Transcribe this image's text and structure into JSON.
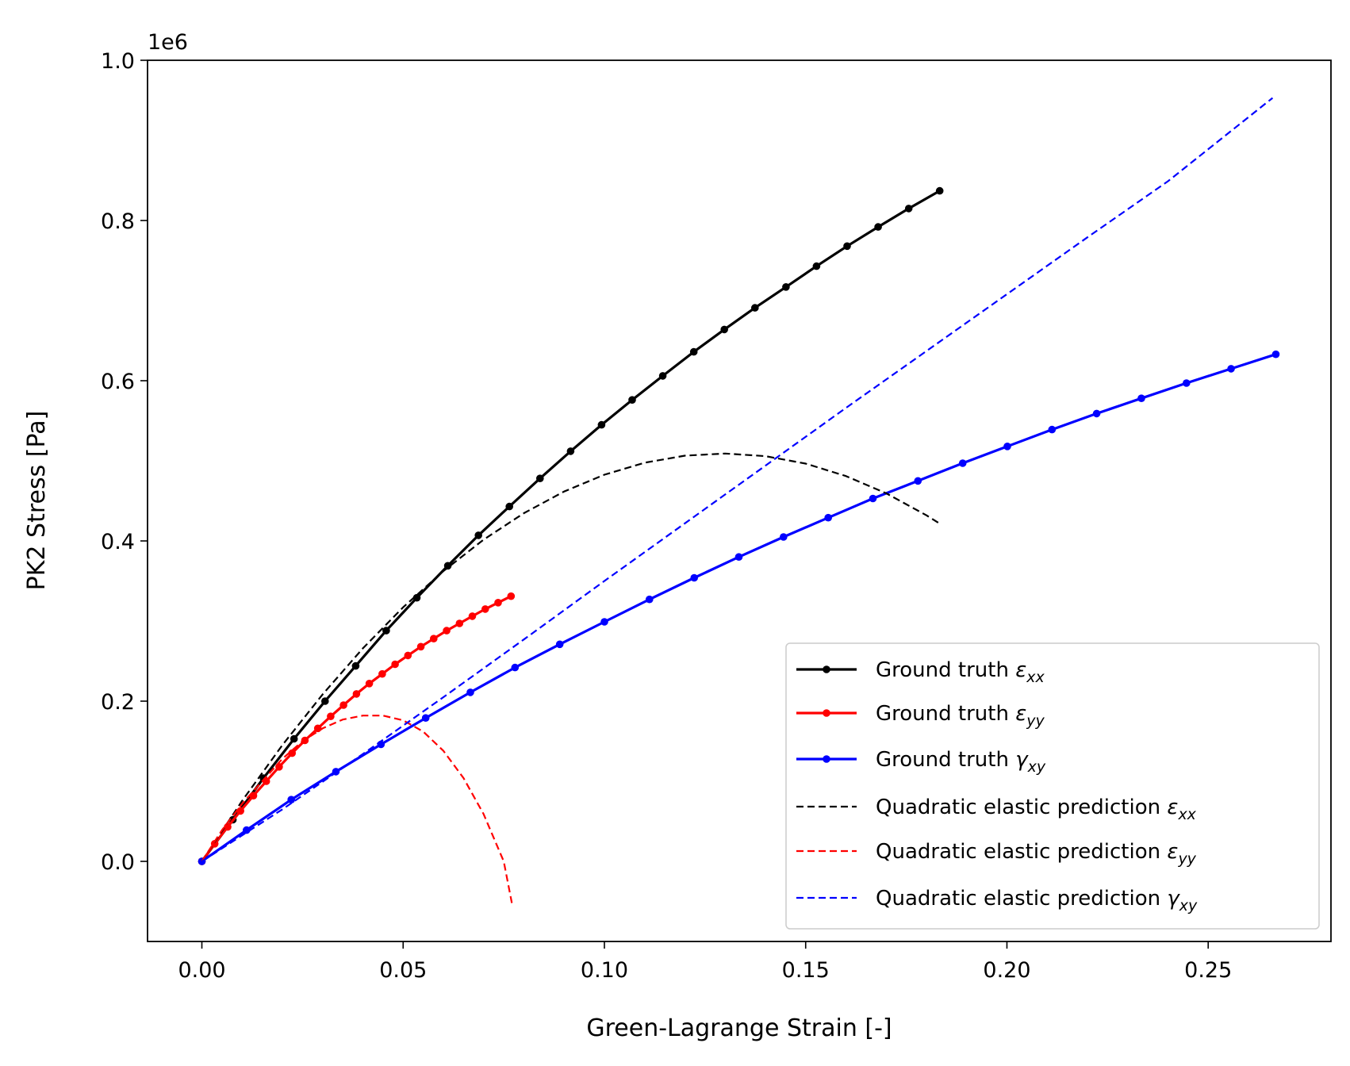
{
  "chart_data": {
    "type": "line",
    "title": "",
    "xlabel": "Green-Lagrange Strain [-]",
    "ylabel": "PK2 Stress [Pa]",
    "y_offset_label": "1e6",
    "xlim": [
      -0.0135,
      0.2805
    ],
    "ylim": [
      -0.1,
      1.0
    ],
    "y_scale_factor": 1000000,
    "x_ticks": [
      0.0,
      0.05,
      0.1,
      0.15,
      0.2,
      0.25
    ],
    "x_tick_labels": [
      "0.00",
      "0.05",
      "0.10",
      "0.15",
      "0.20",
      "0.25"
    ],
    "y_ticks": [
      0.0,
      0.2,
      0.4,
      0.6,
      0.8,
      1.0
    ],
    "y_tick_labels": [
      "0.0",
      "0.2",
      "0.4",
      "0.6",
      "0.8",
      "1.0"
    ],
    "grid": false,
    "legend_position": "lower-right",
    "series": [
      {
        "name": "Ground truth ",
        "symbol": "ε",
        "sub": "xx",
        "color": "#000000",
        "style": "solid-marker",
        "x": [
          0.0,
          0.0077,
          0.0153,
          0.0229,
          0.0306,
          0.0382,
          0.0458,
          0.0534,
          0.0611,
          0.0687,
          0.0764,
          0.084,
          0.0916,
          0.0993,
          0.1069,
          0.1145,
          0.1222,
          0.1298,
          0.1374,
          0.1451,
          0.1527,
          0.1603,
          0.168,
          0.1756,
          0.1833
        ],
        "y": [
          0.0,
          0.052,
          0.104,
          0.153,
          0.2,
          0.244,
          0.288,
          0.329,
          0.369,
          0.407,
          0.443,
          0.478,
          0.512,
          0.545,
          0.576,
          0.606,
          0.636,
          0.664,
          0.691,
          0.717,
          0.743,
          0.768,
          0.792,
          0.815,
          0.837
        ]
      },
      {
        "name": "Ground truth ",
        "symbol": "ε",
        "sub": "yy",
        "color": "#ff0000",
        "style": "solid-marker",
        "x": [
          0.0,
          0.0032,
          0.0064,
          0.0096,
          0.0128,
          0.016,
          0.0192,
          0.0224,
          0.0256,
          0.0288,
          0.032,
          0.0352,
          0.0384,
          0.0416,
          0.0448,
          0.048,
          0.0512,
          0.0544,
          0.0576,
          0.0608,
          0.064,
          0.0672,
          0.0704,
          0.0736,
          0.0768
        ],
        "y": [
          0.0,
          0.022,
          0.043,
          0.063,
          0.082,
          0.1,
          0.118,
          0.135,
          0.151,
          0.166,
          0.181,
          0.195,
          0.209,
          0.222,
          0.234,
          0.246,
          0.257,
          0.268,
          0.278,
          0.288,
          0.297,
          0.306,
          0.315,
          0.323,
          0.331
        ]
      },
      {
        "name": "Ground truth ",
        "symbol": "γ",
        "sub": "xy",
        "color": "#0000ff",
        "style": "solid-marker",
        "x": [
          0.0,
          0.0111,
          0.0222,
          0.0333,
          0.0445,
          0.0556,
          0.0667,
          0.0778,
          0.0889,
          0.1,
          0.1112,
          0.1223,
          0.1334,
          0.1445,
          0.1556,
          0.1667,
          0.1779,
          0.189,
          0.2001,
          0.2112,
          0.2223,
          0.2334,
          0.2446,
          0.2557,
          0.2668
        ],
        "y": [
          0.0,
          0.039,
          0.077,
          0.112,
          0.146,
          0.179,
          0.211,
          0.242,
          0.271,
          0.299,
          0.327,
          0.354,
          0.38,
          0.405,
          0.429,
          0.453,
          0.475,
          0.497,
          0.518,
          0.539,
          0.559,
          0.578,
          0.597,
          0.615,
          0.633
        ]
      },
      {
        "name": "Quadratic elastic prediction ",
        "symbol": "ε",
        "sub": "xx",
        "color": "#000000",
        "style": "dashed",
        "x": [
          0.0,
          0.01,
          0.02,
          0.03,
          0.04,
          0.05,
          0.06,
          0.07,
          0.08,
          0.09,
          0.1,
          0.11,
          0.12,
          0.13,
          0.14,
          0.15,
          0.16,
          0.17,
          0.18,
          0.183
        ],
        "y": [
          0.0,
          0.0756,
          0.1451,
          0.2085,
          0.2659,
          0.3172,
          0.3624,
          0.4016,
          0.4347,
          0.4617,
          0.4827,
          0.4976,
          0.5064,
          0.5091,
          0.5058,
          0.4965,
          0.481,
          0.4595,
          0.432,
          0.4226
        ]
      },
      {
        "name": "Quadratic elastic prediction ",
        "symbol": "ε",
        "sub": "yy",
        "color": "#ff0000",
        "style": "dashed",
        "x": [
          0.0,
          0.005,
          0.01,
          0.015,
          0.02,
          0.025,
          0.03,
          0.035,
          0.04,
          0.045,
          0.05,
          0.055,
          0.06,
          0.065,
          0.07,
          0.075,
          0.077
        ],
        "y": [
          0.0,
          0.039,
          0.072,
          0.1,
          0.128,
          0.15,
          0.166,
          0.177,
          0.182,
          0.182,
          0.176,
          0.162,
          0.138,
          0.104,
          0.059,
          0.0,
          -0.052
        ]
      },
      {
        "name": "Quadratic elastic prediction ",
        "symbol": "γ",
        "sub": "xy",
        "color": "#0000ff",
        "style": "dashed",
        "x": [
          0.0,
          0.02,
          0.04,
          0.06,
          0.08,
          0.1,
          0.12,
          0.14,
          0.16,
          0.18,
          0.2,
          0.22,
          0.24,
          0.266
        ],
        "y": [
          0.0,
          0.065,
          0.134,
          0.205,
          0.277,
          0.35,
          0.422,
          0.494,
          0.566,
          0.637,
          0.708,
          0.779,
          0.849,
          0.953
        ]
      }
    ]
  }
}
